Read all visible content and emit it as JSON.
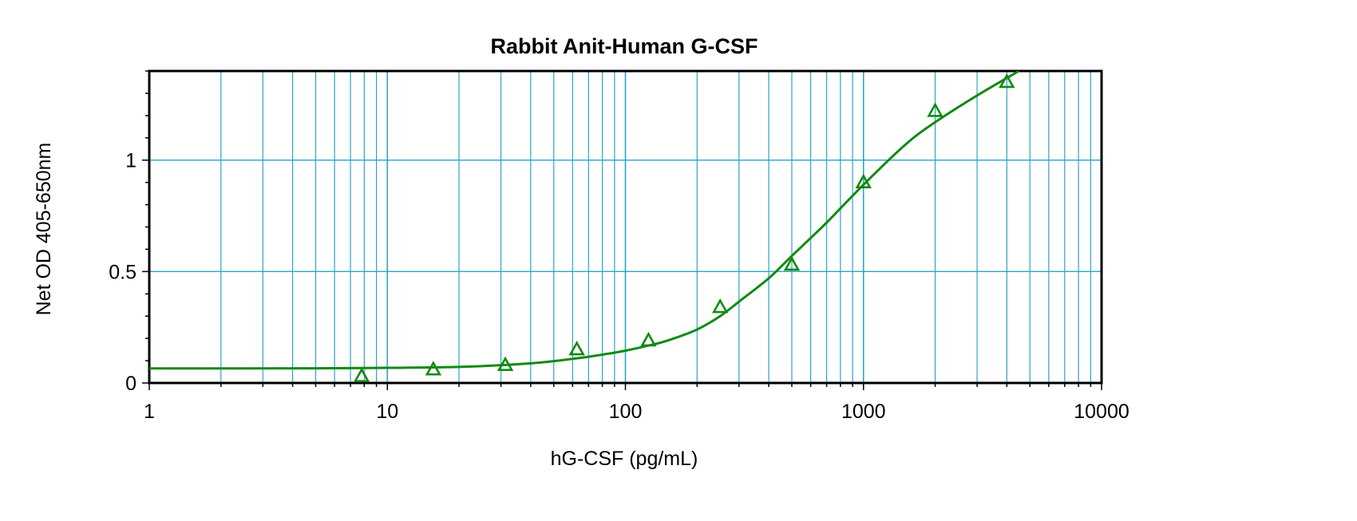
{
  "chart_data": {
    "type": "scatter",
    "title": "Rabbit Anit-Human G-CSF",
    "xlabel": "hG-CSF (pg/mL)",
    "ylabel": "Net OD 405-650nm",
    "xscale": "log",
    "xlim": [
      1,
      10000
    ],
    "ylim": [
      0,
      1.4
    ],
    "x_ticks": [
      1,
      10,
      100,
      1000,
      10000
    ],
    "x_tick_labels": [
      "1",
      "10",
      "100",
      "1000",
      "10000"
    ],
    "y_ticks": [
      0,
      0.5,
      1
    ],
    "y_tick_labels": [
      "0",
      "0.5",
      "1"
    ],
    "grid": true,
    "colors": {
      "series": "#128a12",
      "grid": "#2aa5c7",
      "frame": "#000000"
    },
    "series": [
      {
        "marker": "triangle",
        "x": [
          7.8,
          15.6,
          31.3,
          62.5,
          125,
          250,
          500,
          1000,
          2000,
          4000
        ],
        "y": [
          0.03,
          0.06,
          0.08,
          0.15,
          0.19,
          0.34,
          0.53,
          0.9,
          1.22,
          1.35
        ]
      }
    ],
    "fit": {
      "type": "curve",
      "x": [
        1,
        5,
        10,
        20,
        40,
        60,
        80,
        100,
        125,
        150,
        200,
        250,
        300,
        400,
        500,
        700,
        1000,
        1500,
        2000,
        3000,
        4500
      ],
      "y": [
        0.065,
        0.066,
        0.068,
        0.072,
        0.088,
        0.108,
        0.127,
        0.145,
        0.168,
        0.19,
        0.24,
        0.3,
        0.365,
        0.47,
        0.57,
        0.72,
        0.89,
        1.07,
        1.17,
        1.29,
        1.4
      ]
    }
  }
}
